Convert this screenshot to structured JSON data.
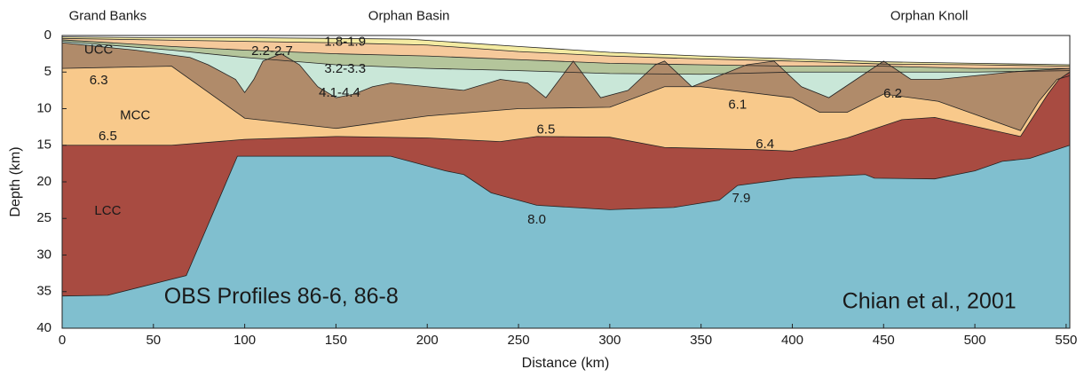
{
  "chart_data": {
    "type": "layered_section",
    "xlabel": "Distance (km)",
    "ylabel": "Depth (km)",
    "xlim": [
      0,
      552
    ],
    "ylim": [
      0,
      40
    ],
    "xticks": [
      0,
      50,
      100,
      150,
      200,
      250,
      300,
      350,
      400,
      450,
      500,
      550
    ],
    "yticks": [
      0,
      5,
      10,
      15,
      20,
      25,
      30,
      35,
      40
    ],
    "inverted_y": true,
    "surface": {
      "x": [
        0,
        50,
        100,
        150,
        190,
        250,
        300,
        350,
        400,
        450,
        500,
        552
      ],
      "values": [
        0.2,
        0.3,
        0.3,
        0.4,
        0.5,
        1.5,
        2.3,
        2.8,
        3.2,
        3.6,
        3.8,
        4.0
      ]
    },
    "series": [
      {
        "color": "#f4eba2",
        "x": [
          0,
          100,
          150,
          200,
          250,
          300,
          350,
          400,
          450,
          500,
          552
        ],
        "values": [
          0.4,
          0.8,
          1.0,
          1.3,
          2.2,
          2.8,
          3.2,
          3.5,
          3.9,
          4.0,
          4.2
        ]
      },
      {
        "color": "#f5c99b",
        "x": [
          0,
          60,
          100,
          150,
          200,
          250,
          300,
          350,
          400,
          450,
          500,
          552
        ],
        "values": [
          0.6,
          1.5,
          2.0,
          2.5,
          2.8,
          3.3,
          3.8,
          4.0,
          4.2,
          4.2,
          4.5,
          4.5
        ]
      },
      {
        "color": "#b4c59b",
        "x": [
          0,
          60,
          100,
          150,
          200,
          250,
          300,
          350,
          400,
          450,
          500,
          552
        ],
        "values": [
          0.8,
          2.0,
          3.0,
          4.0,
          4.5,
          4.8,
          5.2,
          5.3,
          5.0,
          5.0,
          5.0,
          4.8
        ]
      },
      {
        "color": "#c9e7d8",
        "x": [
          0,
          40,
          70,
          80,
          95,
          100,
          105,
          110,
          120,
          130,
          140,
          150,
          160,
          170,
          180,
          200,
          220,
          240,
          255,
          265,
          280,
          295,
          310,
          325,
          330,
          345,
          360,
          375,
          390,
          405,
          420,
          435,
          450,
          465,
          480,
          500,
          520,
          530,
          552
        ],
        "values": [
          1.0,
          2.0,
          3.0,
          4.0,
          6.0,
          7.8,
          6.0,
          3.5,
          2.5,
          4.0,
          7.0,
          8.5,
          8.0,
          7.0,
          6.5,
          7.0,
          7.5,
          6.0,
          6.5,
          8.5,
          3.5,
          8.5,
          7.5,
          4.0,
          3.5,
          7.0,
          5.5,
          4.0,
          3.5,
          7.0,
          8.5,
          6.0,
          3.5,
          6.0,
          6.0,
          5.5,
          5.0,
          4.8,
          4.5
        ]
      },
      {
        "color": "#b08b6a",
        "x": [
          0,
          60,
          100,
          150,
          200,
          250,
          300,
          330,
          350,
          400,
          415,
          430,
          450,
          480,
          525,
          535,
          545,
          552
        ],
        "values": [
          4.5,
          4.2,
          11.3,
          12.7,
          11.0,
          10.0,
          9.8,
          7.0,
          7.0,
          8.5,
          10.5,
          10.5,
          8.0,
          9.0,
          13.0,
          9.0,
          6.0,
          5.5
        ]
      },
      {
        "color": "#f8c98b",
        "x": [
          0,
          60,
          100,
          150,
          200,
          240,
          260,
          300,
          330,
          380,
          400,
          430,
          460,
          478,
          525,
          540,
          546,
          552
        ],
        "values": [
          15.0,
          15.0,
          14.2,
          13.8,
          14.0,
          14.5,
          13.8,
          13.9,
          15.3,
          15.6,
          15.8,
          14.0,
          11.5,
          11.2,
          13.8,
          8.0,
          6.0,
          5.0
        ]
      },
      {
        "color": "#a84b41",
        "x": [
          0,
          25,
          68,
          96,
          180,
          210,
          220,
          235,
          260,
          300,
          335,
          360,
          370,
          400,
          440,
          445,
          478,
          500,
          515,
          530,
          552
        ],
        "values": [
          35.6,
          35.5,
          32.8,
          16.5,
          16.5,
          18.5,
          19.0,
          21.5,
          23.2,
          23.8,
          23.5,
          22.5,
          20.5,
          19.5,
          19.0,
          19.5,
          19.6,
          18.5,
          17.2,
          16.8,
          15.0
        ]
      },
      {
        "color": "#80bfcf",
        "x": [
          0,
          552
        ],
        "values": [
          40,
          40
        ]
      }
    ],
    "annotations": [
      "Grand Banks",
      "Orphan Basin",
      "Orphan Knoll",
      "UCC",
      "6.3",
      "MCC",
      "6.5",
      "LCC",
      "2.2-2.7",
      "1.8-1.9",
      "3.2-3.3",
      "4.1-4.4",
      "6.5",
      "6.1",
      "6.2",
      "6.4",
      "8.0",
      "7.9",
      "OBS Profiles 86-6, 86-8",
      "Chian et al., 2001"
    ]
  }
}
